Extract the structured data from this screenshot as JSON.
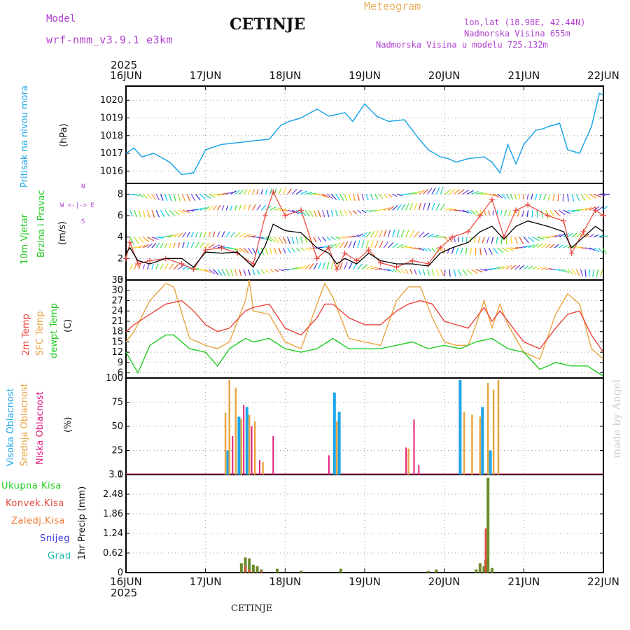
{
  "header": {
    "model_label": "Model",
    "model_name": "wrf-nmm_v3.9.1 e3km",
    "city": "CETINJE",
    "meteogram": "Meteogram",
    "lonlat": "lon,lat (18.98E, 42.44N)",
    "altitude": "Nadmorska Visina 655m",
    "model_altitude": "Nadmorska Visina u modelu 725.132m",
    "year_top": "2025",
    "year_bottom": "2025",
    "footer_city": "CETINJE",
    "watermark": "made by Angel"
  },
  "colors": {
    "pressure": "#1ea5e8",
    "wind": "#00cc33",
    "temp2m": "#e8453c",
    "sfc": "#e8a540",
    "dewpt": "#22cc22",
    "high_cloud": "#1ea5e8",
    "mid_cloud": "#e8a540",
    "low_cloud": "#e0207a",
    "total_rain": "#22cc22",
    "conv_rain": "#e8453c",
    "frozen": "#f07a30",
    "snow": "#3a3ae0",
    "hail": "#20c0b0",
    "purple_text": "#b040d0"
  },
  "x_axis": {
    "dates": [
      "16JUN",
      "17JUN",
      "18JUN",
      "19JUN",
      "20JUN",
      "21JUN",
      "22JUN"
    ]
  },
  "chart_data": [
    {
      "type": "line",
      "title": "Pritisak na nivou mora",
      "ylabel": "(hPa)",
      "ylim": [
        1015.3,
        1020.8
      ],
      "yticks": [
        "1020",
        "1019",
        "1018",
        "1017",
        "1016"
      ],
      "series": [
        {
          "name": "MSLP",
          "x_days": [
            0,
            0.1,
            0.2,
            0.35,
            0.55,
            0.7,
            0.85,
            1.0,
            1.2,
            1.4,
            1.6,
            1.8,
            1.95,
            2.05,
            2.2,
            2.4,
            2.55,
            2.75,
            2.85,
            3.0,
            3.15,
            3.3,
            3.5,
            3.65,
            3.8,
            3.95,
            4.05,
            4.15,
            4.3,
            4.5,
            4.6,
            4.7,
            4.8,
            4.9,
            5.0,
            5.15,
            5.25,
            5.3,
            5.45,
            5.55,
            5.7,
            5.85,
            5.95,
            6.0
          ],
          "values": [
            1017.0,
            1017.3,
            1016.8,
            1017.0,
            1016.5,
            1015.8,
            1015.9,
            1017.2,
            1017.5,
            1017.6,
            1017.7,
            1017.8,
            1018.6,
            1018.8,
            1019.0,
            1019.5,
            1019.1,
            1019.3,
            1018.8,
            1019.8,
            1019.1,
            1018.8,
            1018.9,
            1018.0,
            1017.2,
            1016.8,
            1016.7,
            1016.5,
            1016.7,
            1016.8,
            1016.5,
            1015.9,
            1017.5,
            1016.4,
            1017.5,
            1018.3,
            1018.4,
            1018.5,
            1018.7,
            1017.2,
            1017.0,
            1018.5,
            1020.4,
            1020.3
          ]
        }
      ]
    },
    {
      "type": "line",
      "title": "10m Vjetar Brzina i Pravac",
      "ylabel": "(m/s)",
      "ylim": [
        0,
        9
      ],
      "yticks": [
        "8",
        "6",
        "4",
        "2",
        "0"
      ],
      "compass": [
        "N",
        "W",
        "E",
        "S"
      ],
      "series": [
        {
          "name": "speed",
          "x_days": [
            0,
            0.05,
            0.15,
            0.3,
            0.5,
            0.7,
            0.85,
            1.0,
            1.2,
            1.4,
            1.6,
            1.75,
            1.85,
            2.0,
            2.2,
            2.4,
            2.55,
            2.65,
            2.75,
            2.9,
            3.05,
            3.2,
            3.4,
            3.6,
            3.8,
            3.95,
            4.1,
            4.3,
            4.45,
            4.6,
            4.75,
            4.9,
            5.05,
            5.3,
            5.5,
            5.6,
            5.75,
            5.9,
            6.0
          ],
          "values": [
            2.5,
            3.0,
            1.8,
            1.5,
            2.0,
            2.0,
            1.2,
            2.6,
            2.5,
            2.6,
            1.2,
            3.2,
            5.2,
            4.6,
            4.4,
            3.0,
            2.5,
            1.5,
            2.0,
            1.5,
            2.5,
            1.8,
            1.5,
            1.5,
            1.3,
            2.5,
            3.0,
            3.5,
            4.5,
            5.0,
            3.8,
            5.0,
            5.5,
            5.0,
            4.5,
            3.0,
            4.0,
            5.0,
            4.5
          ]
        },
        {
          "name": "gust",
          "x_days": [
            0,
            0.05,
            0.15,
            0.3,
            0.5,
            0.7,
            0.85,
            1.0,
            1.2,
            1.4,
            1.6,
            1.75,
            1.85,
            2.0,
            2.2,
            2.4,
            2.55,
            2.65,
            2.75,
            2.9,
            3.05,
            3.2,
            3.4,
            3.6,
            3.8,
            3.95,
            4.1,
            4.3,
            4.45,
            4.6,
            4.75,
            4.9,
            5.05,
            5.3,
            5.5,
            5.6,
            5.75,
            5.9,
            6.0
          ],
          "values": [
            2.0,
            3.5,
            1.5,
            1.8,
            2.0,
            1.5,
            1.0,
            2.8,
            3.0,
            2.5,
            1.5,
            6.0,
            8.2,
            6.0,
            6.5,
            2.0,
            3.0,
            1.0,
            2.5,
            1.8,
            2.8,
            1.6,
            1.2,
            1.8,
            1.5,
            3.0,
            4.0,
            4.5,
            6.0,
            7.5,
            4.0,
            6.5,
            7.0,
            6.0,
            5.5,
            2.5,
            4.5,
            6.5,
            6.0
          ]
        }
      ]
    },
    {
      "type": "line",
      "title": "2m Temp / SFC Temp / dewpt Temp",
      "ylabel": "(C)",
      "ylim": [
        4.5,
        33
      ],
      "yticks": [
        "33",
        "30",
        "27",
        "24",
        "21",
        "18",
        "15",
        "12",
        "9",
        "6"
      ],
      "series": [
        {
          "name": "2m Temp",
          "x_days": [
            0,
            0.1,
            0.3,
            0.5,
            0.7,
            0.85,
            1.0,
            1.15,
            1.3,
            1.5,
            1.6,
            1.8,
            2.0,
            2.2,
            2.4,
            2.5,
            2.6,
            2.8,
            3.0,
            3.2,
            3.4,
            3.55,
            3.7,
            3.85,
            4.0,
            4.15,
            4.3,
            4.4,
            4.5,
            4.6,
            4.7,
            4.8,
            5.0,
            5.2,
            5.4,
            5.55,
            5.7,
            5.85,
            6.0
          ],
          "values": [
            18,
            20,
            23,
            26,
            27,
            24,
            20,
            18,
            19,
            24,
            25,
            26,
            19,
            17,
            22,
            26,
            26,
            22,
            20,
            20,
            24,
            26,
            27,
            26,
            21,
            20,
            19,
            22,
            25,
            21,
            24,
            21,
            15,
            13,
            19,
            23,
            24,
            17,
            12
          ]
        },
        {
          "name": "SFC Temp",
          "x_days": [
            0,
            0.1,
            0.3,
            0.5,
            0.6,
            0.8,
            1.0,
            1.15,
            1.3,
            1.5,
            1.55,
            1.6,
            1.8,
            2.0,
            2.2,
            2.4,
            2.5,
            2.6,
            2.8,
            3.0,
            3.2,
            3.4,
            3.55,
            3.7,
            3.85,
            4.0,
            4.15,
            4.3,
            4.4,
            4.5,
            4.6,
            4.7,
            4.8,
            5.0,
            5.2,
            5.4,
            5.55,
            5.7,
            5.85,
            6.0
          ],
          "values": [
            15,
            18,
            27,
            32,
            31,
            16,
            14,
            13,
            15,
            27,
            33,
            24,
            23,
            15,
            13,
            26,
            32,
            28,
            16,
            15,
            14,
            27,
            31,
            31,
            22,
            15,
            14,
            14,
            20,
            27,
            19,
            26,
            20,
            12,
            10,
            23,
            29,
            26,
            13,
            10
          ]
        },
        {
          "name": "dewpt Temp",
          "x_days": [
            0,
            0.15,
            0.3,
            0.5,
            0.6,
            0.8,
            1.0,
            1.15,
            1.3,
            1.5,
            1.6,
            1.8,
            2.0,
            2.2,
            2.4,
            2.6,
            2.8,
            3.0,
            3.2,
            3.4,
            3.6,
            3.8,
            4.0,
            4.2,
            4.4,
            4.6,
            4.8,
            5.0,
            5.2,
            5.4,
            5.6,
            5.8,
            6.0
          ],
          "values": [
            12,
            6,
            14,
            17,
            17,
            13,
            12,
            8,
            13,
            16,
            15,
            16,
            13,
            12,
            13,
            16,
            13,
            13,
            13,
            14,
            15,
            13,
            14,
            13,
            15,
            16,
            13,
            12,
            7,
            9,
            8,
            8,
            5
          ]
        }
      ]
    },
    {
      "type": "bar",
      "title": "Visoka / Srednja / Niska Oblacnost",
      "ylabel": "(%)",
      "ylim": [
        0,
        100
      ],
      "yticks": [
        "100",
        "75",
        "50",
        "25",
        "0"
      ],
      "series": [
        {
          "name": "Visoka Oblacnost",
          "x_days": [
            1.28,
            1.42,
            1.52,
            2.68,
            2.62,
            4.2,
            4.48,
            4.58
          ],
          "values": [
            25,
            60,
            70,
            65,
            85,
            98,
            70,
            25
          ]
        },
        {
          "name": "Srednja Oblacnost",
          "x_days": [
            1.25,
            1.3,
            1.38,
            1.45,
            1.55,
            1.62,
            1.72,
            2.65,
            3.55,
            4.25,
            4.35,
            4.45,
            4.55,
            4.62,
            4.68
          ],
          "values": [
            64,
            98,
            90,
            58,
            62,
            55,
            13,
            55,
            27,
            65,
            62,
            60,
            95,
            88,
            98
          ]
        },
        {
          "name": "Niska Oblacnost",
          "x_days": [
            1.34,
            1.48,
            1.58,
            1.68,
            1.85,
            2.55,
            3.52,
            3.62,
            3.68
          ],
          "values": [
            40,
            72,
            50,
            15,
            40,
            20,
            28,
            57,
            10
          ]
        }
      ]
    },
    {
      "type": "bar",
      "title": "1hr Precip",
      "ylabel": "1hr Precip (mm)",
      "ylim": [
        0,
        3.1
      ],
      "yticks": [
        "3.1",
        "2.48",
        "1.86",
        "1.24",
        "0.62",
        "0"
      ],
      "series": [
        {
          "name": "Ukupna Kisa",
          "x_days": [
            1.45,
            1.5,
            1.55,
            1.6,
            1.65,
            1.7,
            1.9,
            2.2,
            2.7,
            3.8,
            3.9,
            4.4,
            4.45,
            4.5,
            4.52,
            4.55,
            4.6
          ],
          "values": [
            0.3,
            0.48,
            0.45,
            0.25,
            0.2,
            0.1,
            0.12,
            0.06,
            0.12,
            0.05,
            0.1,
            0.1,
            0.3,
            0.2,
            0.4,
            3.0,
            0.15
          ]
        },
        {
          "name": "Konvek.Kisa",
          "x_days": [
            1.5,
            1.55,
            1.7,
            4.52
          ],
          "values": [
            0.2,
            0.1,
            0.05,
            1.4
          ]
        }
      ],
      "legend": [
        "Ukupna Kisa",
        "Konvek.Kisa",
        "Zaledj.Kisa",
        "Snijeg",
        "Grad"
      ]
    }
  ]
}
